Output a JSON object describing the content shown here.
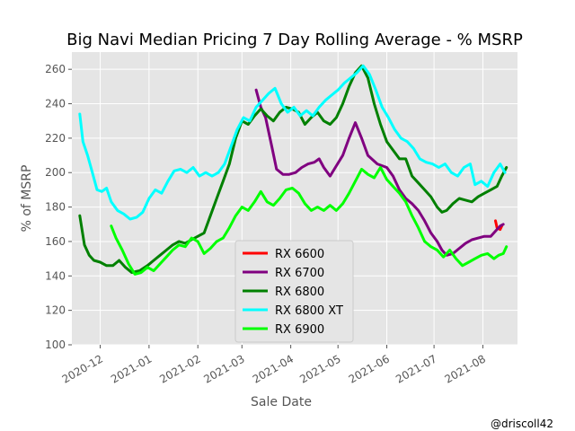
{
  "chart_data": {
    "type": "line",
    "title": "Big Navi Median Pricing 7 Day Rolling Average - % MSRP",
    "xlabel": "Sale Date",
    "ylabel": "% of MSRP",
    "xlim": [
      "2020-11-13",
      "2021-08-23"
    ],
    "ylim": [
      100,
      270
    ],
    "yticks": [
      100,
      120,
      140,
      160,
      180,
      200,
      220,
      240,
      260
    ],
    "xticks": [
      {
        "date": "2020-12-01",
        "label": "2020-12"
      },
      {
        "date": "2021-01-01",
        "label": "2021-01"
      },
      {
        "date": "2021-02-01",
        "label": "2021-02"
      },
      {
        "date": "2021-03-01",
        "label": "2021-03"
      },
      {
        "date": "2021-04-01",
        "label": "2021-04"
      },
      {
        "date": "2021-05-01",
        "label": "2021-05"
      },
      {
        "date": "2021-06-01",
        "label": "2021-06"
      },
      {
        "date": "2021-07-01",
        "label": "2021-07"
      },
      {
        "date": "2021-08-01",
        "label": "2021-08"
      }
    ],
    "grid": true,
    "legend_position": "lower-center",
    "credit": "@driscoll42",
    "series": [
      {
        "name": "RX 6600",
        "color": "#ff0000",
        "points": [
          [
            "2021-08-09",
            172
          ],
          [
            "2021-08-10",
            168
          ],
          [
            "2021-08-12",
            167
          ],
          [
            "2021-08-13",
            169
          ]
        ]
      },
      {
        "name": "RX 6700",
        "color": "#800080",
        "points": [
          [
            "2021-03-10",
            248
          ],
          [
            "2021-03-13",
            238
          ],
          [
            "2021-03-16",
            232
          ],
          [
            "2021-03-20",
            215
          ],
          [
            "2021-03-23",
            202
          ],
          [
            "2021-03-27",
            199
          ],
          [
            "2021-03-31",
            199
          ],
          [
            "2021-04-04",
            200
          ],
          [
            "2021-04-08",
            203
          ],
          [
            "2021-04-12",
            205
          ],
          [
            "2021-04-16",
            206
          ],
          [
            "2021-04-19",
            208
          ],
          [
            "2021-04-22",
            203
          ],
          [
            "2021-04-26",
            198
          ],
          [
            "2021-04-30",
            204
          ],
          [
            "2021-05-04",
            210
          ],
          [
            "2021-05-08",
            220
          ],
          [
            "2021-05-12",
            229
          ],
          [
            "2021-05-16",
            220
          ],
          [
            "2021-05-20",
            210
          ],
          [
            "2021-05-26",
            205
          ],
          [
            "2021-06-01",
            203
          ],
          [
            "2021-06-05",
            198
          ],
          [
            "2021-06-09",
            190
          ],
          [
            "2021-06-13",
            185
          ],
          [
            "2021-06-17",
            182
          ],
          [
            "2021-06-21",
            178
          ],
          [
            "2021-06-25",
            172
          ],
          [
            "2021-06-29",
            165
          ],
          [
            "2021-07-03",
            160
          ],
          [
            "2021-07-06",
            155
          ],
          [
            "2021-07-09",
            152
          ],
          [
            "2021-07-13",
            153
          ],
          [
            "2021-07-17",
            156
          ],
          [
            "2021-07-21",
            159
          ],
          [
            "2021-07-25",
            161
          ],
          [
            "2021-07-29",
            162
          ],
          [
            "2021-08-02",
            163
          ],
          [
            "2021-08-06",
            163
          ],
          [
            "2021-08-09",
            166
          ],
          [
            "2021-08-12",
            169
          ],
          [
            "2021-08-14",
            170
          ]
        ]
      },
      {
        "name": "RX 6800",
        "color": "#008000",
        "points": [
          [
            "2020-11-18",
            175
          ],
          [
            "2020-11-21",
            158
          ],
          [
            "2020-11-24",
            152
          ],
          [
            "2020-11-27",
            149
          ],
          [
            "2020-12-01",
            148
          ],
          [
            "2020-12-05",
            146
          ],
          [
            "2020-12-09",
            146
          ],
          [
            "2020-12-13",
            149
          ],
          [
            "2020-12-17",
            145
          ],
          [
            "2020-12-21",
            142
          ],
          [
            "2020-12-26",
            143
          ],
          [
            "2020-12-31",
            146
          ],
          [
            "2021-01-04",
            149
          ],
          [
            "2021-01-08",
            152
          ],
          [
            "2021-01-12",
            155
          ],
          [
            "2021-01-16",
            158
          ],
          [
            "2021-01-20",
            160
          ],
          [
            "2021-01-24",
            159
          ],
          [
            "2021-01-28",
            161
          ],
          [
            "2021-02-01",
            163
          ],
          [
            "2021-02-05",
            165
          ],
          [
            "2021-02-09",
            175
          ],
          [
            "2021-02-13",
            185
          ],
          [
            "2021-02-17",
            195
          ],
          [
            "2021-02-21",
            205
          ],
          [
            "2021-02-25",
            220
          ],
          [
            "2021-03-01",
            230
          ],
          [
            "2021-03-05",
            228
          ],
          [
            "2021-03-09",
            233
          ],
          [
            "2021-03-13",
            237
          ],
          [
            "2021-03-17",
            233
          ],
          [
            "2021-03-21",
            230
          ],
          [
            "2021-03-25",
            235
          ],
          [
            "2021-03-29",
            238
          ],
          [
            "2021-04-02",
            237
          ],
          [
            "2021-04-06",
            235
          ],
          [
            "2021-04-10",
            228
          ],
          [
            "2021-04-14",
            232
          ],
          [
            "2021-04-18",
            235
          ],
          [
            "2021-04-22",
            230
          ],
          [
            "2021-04-26",
            228
          ],
          [
            "2021-04-30",
            232
          ],
          [
            "2021-05-04",
            240
          ],
          [
            "2021-05-08",
            250
          ],
          [
            "2021-05-12",
            258
          ],
          [
            "2021-05-16",
            262
          ],
          [
            "2021-05-20",
            255
          ],
          [
            "2021-05-24",
            240
          ],
          [
            "2021-05-28",
            228
          ],
          [
            "2021-06-01",
            218
          ],
          [
            "2021-06-05",
            213
          ],
          [
            "2021-06-09",
            208
          ],
          [
            "2021-06-13",
            208
          ],
          [
            "2021-06-17",
            198
          ],
          [
            "2021-06-21",
            194
          ],
          [
            "2021-06-25",
            190
          ],
          [
            "2021-06-29",
            186
          ],
          [
            "2021-07-03",
            180
          ],
          [
            "2021-07-06",
            177
          ],
          [
            "2021-07-09",
            178
          ],
          [
            "2021-07-13",
            182
          ],
          [
            "2021-07-17",
            185
          ],
          [
            "2021-07-21",
            184
          ],
          [
            "2021-07-25",
            183
          ],
          [
            "2021-07-29",
            186
          ],
          [
            "2021-08-02",
            188
          ],
          [
            "2021-08-06",
            190
          ],
          [
            "2021-08-10",
            192
          ],
          [
            "2021-08-13",
            198
          ],
          [
            "2021-08-16",
            203
          ]
        ]
      },
      {
        "name": "RX 6800 XT",
        "color": "#00ffff",
        "points": [
          [
            "2020-11-18",
            234
          ],
          [
            "2020-11-20",
            218
          ],
          [
            "2020-11-23",
            210
          ],
          [
            "2020-11-26",
            200
          ],
          [
            "2020-11-29",
            190
          ],
          [
            "2020-12-02",
            189
          ],
          [
            "2020-12-05",
            191
          ],
          [
            "2020-12-08",
            183
          ],
          [
            "2020-12-12",
            178
          ],
          [
            "2020-12-16",
            176
          ],
          [
            "2020-12-20",
            173
          ],
          [
            "2020-12-24",
            174
          ],
          [
            "2020-12-28",
            177
          ],
          [
            "2021-01-01",
            185
          ],
          [
            "2021-01-05",
            190
          ],
          [
            "2021-01-09",
            188
          ],
          [
            "2021-01-13",
            195
          ],
          [
            "2021-01-17",
            201
          ],
          [
            "2021-01-21",
            202
          ],
          [
            "2021-01-25",
            200
          ],
          [
            "2021-01-29",
            203
          ],
          [
            "2021-02-02",
            198
          ],
          [
            "2021-02-06",
            200
          ],
          [
            "2021-02-10",
            198
          ],
          [
            "2021-02-14",
            200
          ],
          [
            "2021-02-18",
            205
          ],
          [
            "2021-02-22",
            215
          ],
          [
            "2021-02-26",
            225
          ],
          [
            "2021-03-02",
            232
          ],
          [
            "2021-03-06",
            230
          ],
          [
            "2021-03-10",
            238
          ],
          [
            "2021-03-14",
            242
          ],
          [
            "2021-03-18",
            246
          ],
          [
            "2021-03-22",
            249
          ],
          [
            "2021-03-26",
            240
          ],
          [
            "2021-03-30",
            235
          ],
          [
            "2021-04-03",
            238
          ],
          [
            "2021-04-07",
            233
          ],
          [
            "2021-04-11",
            236
          ],
          [
            "2021-04-15",
            233
          ],
          [
            "2021-04-19",
            238
          ],
          [
            "2021-04-23",
            242
          ],
          [
            "2021-04-27",
            245
          ],
          [
            "2021-05-01",
            248
          ],
          [
            "2021-05-05",
            252
          ],
          [
            "2021-05-09",
            255
          ],
          [
            "2021-05-13",
            258
          ],
          [
            "2021-05-17",
            262
          ],
          [
            "2021-05-21",
            257
          ],
          [
            "2021-05-25",
            248
          ],
          [
            "2021-05-29",
            238
          ],
          [
            "2021-06-02",
            232
          ],
          [
            "2021-06-06",
            225
          ],
          [
            "2021-06-10",
            220
          ],
          [
            "2021-06-14",
            218
          ],
          [
            "2021-06-18",
            214
          ],
          [
            "2021-06-22",
            208
          ],
          [
            "2021-06-26",
            206
          ],
          [
            "2021-06-30",
            205
          ],
          [
            "2021-07-04",
            203
          ],
          [
            "2021-07-08",
            205
          ],
          [
            "2021-07-12",
            200
          ],
          [
            "2021-07-16",
            198
          ],
          [
            "2021-07-20",
            203
          ],
          [
            "2021-07-24",
            205
          ],
          [
            "2021-07-27",
            193
          ],
          [
            "2021-07-31",
            195
          ],
          [
            "2021-08-04",
            192
          ],
          [
            "2021-08-08",
            200
          ],
          [
            "2021-08-12",
            205
          ],
          [
            "2021-08-15",
            200
          ]
        ]
      },
      {
        "name": "RX 6900",
        "color": "#00ff00",
        "points": [
          [
            "2020-12-08",
            169
          ],
          [
            "2020-12-11",
            162
          ],
          [
            "2020-12-15",
            155
          ],
          [
            "2020-12-19",
            147
          ],
          [
            "2020-12-23",
            141
          ],
          [
            "2020-12-27",
            142
          ],
          [
            "2020-12-31",
            145
          ],
          [
            "2021-01-04",
            143
          ],
          [
            "2021-01-08",
            147
          ],
          [
            "2021-01-12",
            151
          ],
          [
            "2021-01-16",
            155
          ],
          [
            "2021-01-20",
            158
          ],
          [
            "2021-01-24",
            157
          ],
          [
            "2021-01-28",
            162
          ],
          [
            "2021-02-01",
            160
          ],
          [
            "2021-02-05",
            153
          ],
          [
            "2021-02-09",
            156
          ],
          [
            "2021-02-13",
            160
          ],
          [
            "2021-02-17",
            162
          ],
          [
            "2021-02-21",
            168
          ],
          [
            "2021-02-25",
            175
          ],
          [
            "2021-03-01",
            180
          ],
          [
            "2021-03-05",
            178
          ],
          [
            "2021-03-09",
            183
          ],
          [
            "2021-03-13",
            189
          ],
          [
            "2021-03-17",
            183
          ],
          [
            "2021-03-21",
            181
          ],
          [
            "2021-03-25",
            185
          ],
          [
            "2021-03-29",
            190
          ],
          [
            "2021-04-02",
            191
          ],
          [
            "2021-04-06",
            188
          ],
          [
            "2021-04-10",
            182
          ],
          [
            "2021-04-14",
            178
          ],
          [
            "2021-04-18",
            180
          ],
          [
            "2021-04-22",
            178
          ],
          [
            "2021-04-26",
            181
          ],
          [
            "2021-04-30",
            178
          ],
          [
            "2021-05-04",
            182
          ],
          [
            "2021-05-08",
            188
          ],
          [
            "2021-05-12",
            195
          ],
          [
            "2021-05-16",
            202
          ],
          [
            "2021-05-20",
            199
          ],
          [
            "2021-05-24",
            197
          ],
          [
            "2021-05-28",
            203
          ],
          [
            "2021-06-01",
            196
          ],
          [
            "2021-06-05",
            192
          ],
          [
            "2021-06-09",
            188
          ],
          [
            "2021-06-13",
            183
          ],
          [
            "2021-06-17",
            175
          ],
          [
            "2021-06-21",
            168
          ],
          [
            "2021-06-25",
            160
          ],
          [
            "2021-06-29",
            157
          ],
          [
            "2021-07-03",
            155
          ],
          [
            "2021-07-07",
            151
          ],
          [
            "2021-07-11",
            155
          ],
          [
            "2021-07-15",
            150
          ],
          [
            "2021-07-19",
            146
          ],
          [
            "2021-07-23",
            148
          ],
          [
            "2021-07-27",
            150
          ],
          [
            "2021-07-31",
            152
          ],
          [
            "2021-08-04",
            153
          ],
          [
            "2021-08-08",
            150
          ],
          [
            "2021-08-11",
            152
          ],
          [
            "2021-08-14",
            153
          ],
          [
            "2021-08-16",
            157
          ]
        ]
      }
    ]
  }
}
